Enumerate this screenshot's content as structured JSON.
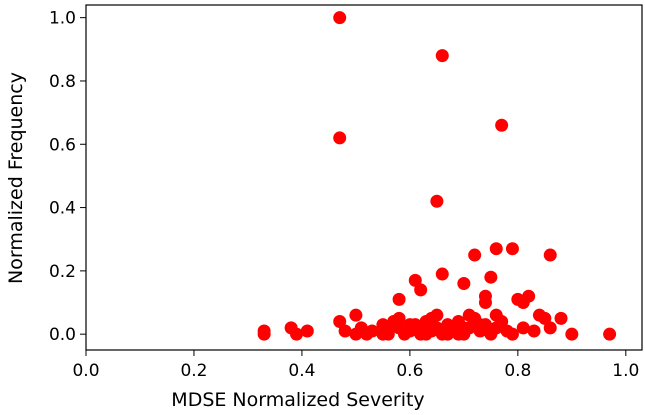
{
  "chart_data": {
    "type": "scatter",
    "title": "",
    "xlabel": "MDSE Normalized Severity",
    "ylabel": "Normalized Frequency",
    "xlim": [
      0.0,
      1.03
    ],
    "ylim": [
      -0.05,
      1.04
    ],
    "xticks": [
      "0.0",
      "0.2",
      "0.4",
      "0.6",
      "0.8",
      "1.0"
    ],
    "yticks": [
      "0.0",
      "0.2",
      "0.4",
      "0.6",
      "0.8",
      "1.0"
    ],
    "grid": false,
    "legend": "none",
    "marker_color": "#ff0000",
    "series": [
      {
        "points": [
          [
            0.47,
            1.0
          ],
          [
            0.66,
            0.88
          ],
          [
            0.47,
            0.62
          ],
          [
            0.77,
            0.66
          ],
          [
            0.65,
            0.42
          ],
          [
            0.76,
            0.27
          ],
          [
            0.79,
            0.27
          ],
          [
            0.72,
            0.25
          ],
          [
            0.86,
            0.25
          ],
          [
            0.75,
            0.18
          ],
          [
            0.66,
            0.19
          ],
          [
            0.7,
            0.16
          ],
          [
            0.61,
            0.17
          ],
          [
            0.62,
            0.14
          ],
          [
            0.58,
            0.11
          ],
          [
            0.74,
            0.1
          ],
          [
            0.74,
            0.12
          ],
          [
            0.8,
            0.11
          ],
          [
            0.81,
            0.1
          ],
          [
            0.82,
            0.12
          ],
          [
            0.84,
            0.06
          ],
          [
            0.85,
            0.05
          ],
          [
            0.88,
            0.05
          ],
          [
            0.47,
            0.04
          ],
          [
            0.5,
            0.06
          ],
          [
            0.33,
            0.0
          ],
          [
            0.33,
            0.01
          ],
          [
            0.38,
            0.02
          ],
          [
            0.39,
            0.0
          ],
          [
            0.41,
            0.01
          ],
          [
            0.48,
            0.01
          ],
          [
            0.5,
            0.0
          ],
          [
            0.51,
            0.02
          ],
          [
            0.52,
            0.0
          ],
          [
            0.53,
            0.01
          ],
          [
            0.55,
            0.03
          ],
          [
            0.56,
            0.0
          ],
          [
            0.57,
            0.04
          ],
          [
            0.58,
            0.02
          ],
          [
            0.59,
            0.0
          ],
          [
            0.6,
            0.01
          ],
          [
            0.61,
            0.03
          ],
          [
            0.62,
            0.0
          ],
          [
            0.62,
            0.02
          ],
          [
            0.63,
            0.04
          ],
          [
            0.64,
            0.01
          ],
          [
            0.65,
            0.02
          ],
          [
            0.65,
            0.06
          ],
          [
            0.66,
            0.0
          ],
          [
            0.67,
            0.03
          ],
          [
            0.68,
            0.01
          ],
          [
            0.69,
            0.04
          ],
          [
            0.7,
            0.0
          ],
          [
            0.71,
            0.02
          ],
          [
            0.72,
            0.05
          ],
          [
            0.73,
            0.01
          ],
          [
            0.74,
            0.03
          ],
          [
            0.75,
            0.0
          ],
          [
            0.76,
            0.02
          ],
          [
            0.77,
            0.04
          ],
          [
            0.78,
            0.01
          ],
          [
            0.79,
            0.0
          ],
          [
            0.81,
            0.02
          ],
          [
            0.83,
            0.01
          ],
          [
            0.86,
            0.02
          ],
          [
            0.9,
            0.0
          ],
          [
            0.97,
            0.0
          ],
          [
            0.55,
            0.0
          ],
          [
            0.58,
            0.05
          ],
          [
            0.6,
            0.03
          ],
          [
            0.63,
            0.0
          ],
          [
            0.66,
            0.01
          ],
          [
            0.69,
            0.0
          ],
          [
            0.71,
            0.06
          ],
          [
            0.73,
            0.03
          ],
          [
            0.56,
            0.02
          ],
          [
            0.64,
            0.05
          ],
          [
            0.67,
            0.0
          ],
          [
            0.7,
            0.02
          ],
          [
            0.76,
            0.06
          ]
        ]
      }
    ]
  }
}
